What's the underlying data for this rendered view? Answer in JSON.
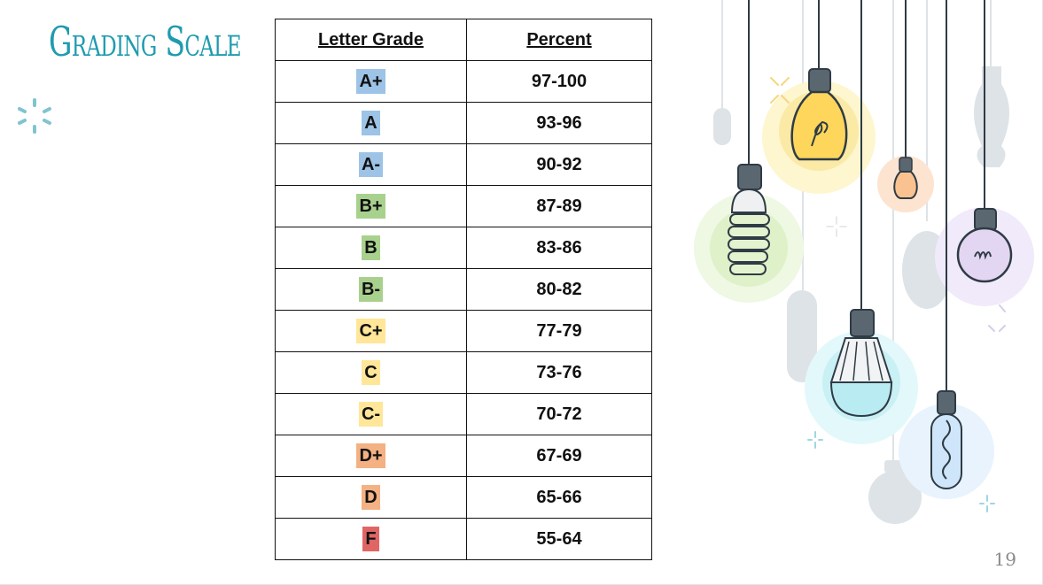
{
  "slide": {
    "title": "Grading Scale",
    "page_number": "19"
  },
  "table": {
    "headers": [
      "Letter Grade",
      "Percent"
    ],
    "rows": [
      {
        "grade": "A+",
        "percent": "97-100",
        "color": "#9dc3e6"
      },
      {
        "grade": "A",
        "percent": "93-96",
        "color": "#9dc3e6"
      },
      {
        "grade": "A-",
        "percent": "90-92",
        "color": "#9dc3e6"
      },
      {
        "grade": "B+",
        "percent": "87-89",
        "color": "#a9d18e"
      },
      {
        "grade": "B",
        "percent": "83-86",
        "color": "#a9d18e"
      },
      {
        "grade": "B-",
        "percent": "80-82",
        "color": "#a9d18e"
      },
      {
        "grade": "C+",
        "percent": "77-79",
        "color": "#ffe699"
      },
      {
        "grade": "C",
        "percent": "73-76",
        "color": "#ffe699"
      },
      {
        "grade": "C-",
        "percent": "70-72",
        "color": "#ffe699"
      },
      {
        "grade": "D+",
        "percent": "67-69",
        "color": "#f4b183"
      },
      {
        "grade": "D",
        "percent": "65-66",
        "color": "#f4b183"
      },
      {
        "grade": "F",
        "percent": "55-64",
        "color": "#e06666"
      }
    ]
  },
  "theme": {
    "title_color": "#1f9bb0",
    "decoration": "light-bulbs-illustration"
  }
}
